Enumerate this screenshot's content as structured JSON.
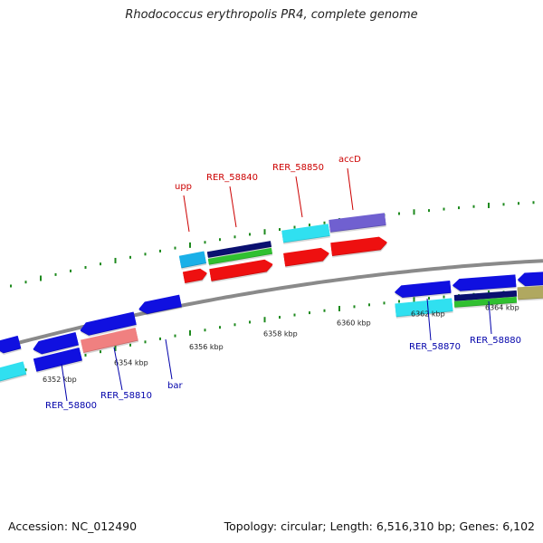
{
  "title": "Rhodococcus erythropolis PR4, complete genome",
  "footer": {
    "accession": "Accession: NC_012490",
    "topology": "Topology: circular; Length: 6,516,310 bp; Genes: 6,102"
  },
  "scale_labels": [
    "6352 kbp",
    "6354 kbp",
    "6356 kbp",
    "6358 kbp",
    "6360 kbp",
    "6362 kbp",
    "6364 kbp"
  ],
  "colors": {
    "backbone": "#8a8a8a",
    "ticks": "#1e8a1e",
    "label_top_strand": "#cc0000",
    "label_bottom_strand": "#0000aa",
    "blue": "#1010e0",
    "cyan": "#30e0f0",
    "skyblue": "#1ab0e8",
    "red": "#ee1010",
    "navy": "#0a1070",
    "green": "#30c030",
    "purple": "#7060d0",
    "salmon": "#f08080",
    "olive": "#b0a860"
  },
  "gene_labels": [
    {
      "text": "upp",
      "color": "label_top_strand"
    },
    {
      "text": "RER_58840",
      "color": "label_top_strand"
    },
    {
      "text": "RER_58850",
      "color": "label_top_strand"
    },
    {
      "text": "accD",
      "color": "label_top_strand"
    },
    {
      "text": "RER_58800",
      "color": "label_bottom_strand"
    },
    {
      "text": "RER_58810",
      "color": "label_bottom_strand"
    },
    {
      "text": "bar",
      "color": "label_bottom_strand"
    },
    {
      "text": "RER_58870",
      "color": "label_bottom_strand"
    },
    {
      "text": "RER_58880",
      "color": "label_bottom_strand"
    }
  ]
}
